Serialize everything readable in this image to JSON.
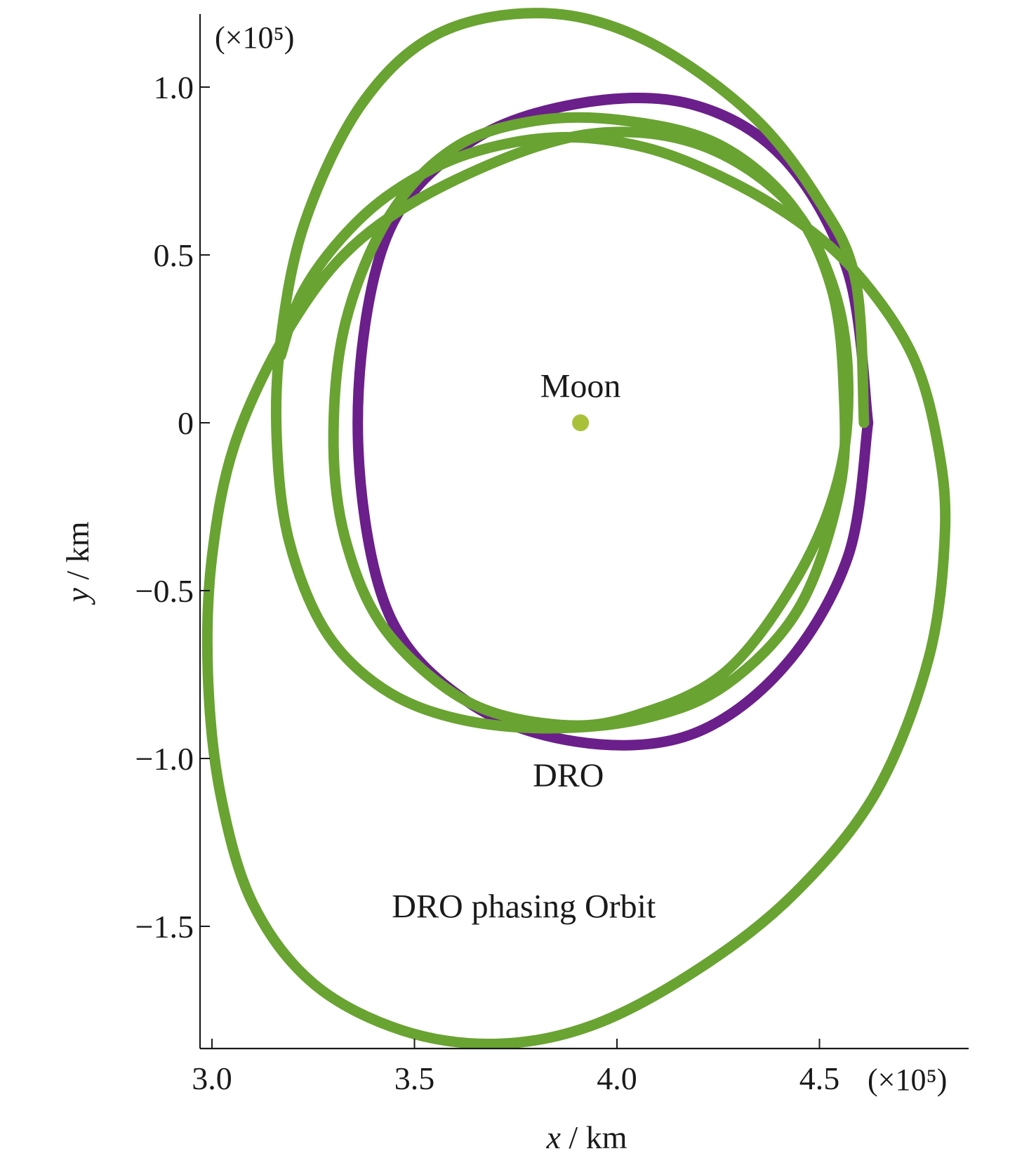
{
  "chart_data": {
    "type": "line",
    "xlabel_var": "x",
    "xlabel_unit": " / km",
    "ylabel_var": "y",
    "ylabel_unit": " / km",
    "x_scale_note": "(×10⁵)",
    "y_scale_note": "(×10⁵)",
    "xlim": [
      2.98,
      4.85
    ],
    "ylim": [
      -1.86,
      1.24
    ],
    "xticks": [
      3.0,
      3.5,
      4.0,
      4.5
    ],
    "xtick_labels": [
      "3.0",
      "3.5",
      "4.0",
      "4.5"
    ],
    "yticks": [
      1.0,
      0.5,
      0,
      -0.5,
      -1.0,
      -1.5
    ],
    "ytick_labels": [
      "1.0",
      "0.5",
      "0",
      "−0.5",
      "−1.0",
      "−1.5"
    ],
    "grid": false,
    "annotations": [
      {
        "text": "Moon",
        "x": 3.91,
        "y": 0.11
      },
      {
        "text": "DRO",
        "x": 3.88,
        "y": -1.05
      },
      {
        "text": "DRO phasing Orbit",
        "x": 3.77,
        "y": -1.44
      }
    ],
    "moon": {
      "x": 3.91,
      "y": 0.0,
      "color": "#a9c13a"
    },
    "series": [
      {
        "color": "#6a1f8a",
        "points": [
          [
            4.62,
            0.0
          ],
          [
            4.57,
            0.45
          ],
          [
            4.41,
            0.79
          ],
          [
            4.18,
            0.95
          ],
          [
            3.9,
            0.95
          ],
          [
            3.63,
            0.83
          ],
          [
            3.43,
            0.55
          ],
          [
            3.36,
            0.0
          ],
          [
            3.43,
            -0.55
          ],
          [
            3.63,
            -0.83
          ],
          [
            3.9,
            -0.95
          ],
          [
            4.18,
            -0.93
          ],
          [
            4.41,
            -0.73
          ],
          [
            4.57,
            -0.4
          ],
          [
            4.62,
            0.0
          ]
        ]
      },
      {
        "color": "#69a332",
        "points": [
          [
            4.61,
            0.0
          ],
          [
            4.59,
            0.42
          ],
          [
            4.5,
            0.66
          ],
          [
            4.33,
            0.92
          ],
          [
            4.07,
            1.14
          ],
          [
            3.82,
            1.22
          ],
          [
            3.56,
            1.16
          ],
          [
            3.37,
            0.95
          ],
          [
            3.23,
            0.6
          ],
          [
            3.17,
            0.25
          ],
          [
            3.16,
            -0.05
          ],
          [
            3.19,
            -0.35
          ],
          [
            3.28,
            -0.62
          ],
          [
            3.42,
            -0.79
          ],
          [
            3.6,
            -0.88
          ],
          [
            3.83,
            -0.91
          ],
          [
            4.07,
            -0.88
          ],
          [
            4.27,
            -0.78
          ],
          [
            4.45,
            -0.55
          ],
          [
            4.55,
            -0.2
          ],
          [
            4.56,
            0.1
          ],
          [
            4.53,
            0.4
          ],
          [
            4.43,
            0.65
          ],
          [
            4.25,
            0.83
          ],
          [
            4.02,
            0.9
          ],
          [
            3.8,
            0.9
          ],
          [
            3.6,
            0.82
          ],
          [
            3.44,
            0.62
          ],
          [
            3.33,
            0.3
          ],
          [
            3.3,
            -0.05
          ],
          [
            3.33,
            -0.35
          ],
          [
            3.43,
            -0.62
          ],
          [
            3.63,
            -0.83
          ],
          [
            3.86,
            -0.9
          ],
          [
            4.05,
            -0.87
          ],
          [
            4.27,
            -0.74
          ],
          [
            4.45,
            -0.45
          ],
          [
            4.55,
            -0.15
          ],
          [
            4.57,
            0.15
          ],
          [
            4.53,
            0.42
          ],
          [
            4.42,
            0.66
          ],
          [
            4.2,
            0.83
          ],
          [
            3.93,
            0.86
          ],
          [
            3.63,
            0.74
          ],
          [
            3.37,
            0.55
          ],
          [
            3.2,
            0.3
          ],
          [
            3.06,
            -0.05
          ],
          [
            3.0,
            -0.4
          ],
          [
            2.99,
            -0.75
          ],
          [
            3.02,
            -1.1
          ],
          [
            3.1,
            -1.43
          ],
          [
            3.25,
            -1.67
          ],
          [
            3.47,
            -1.81
          ],
          [
            3.71,
            -1.85
          ],
          [
            3.95,
            -1.79
          ],
          [
            4.21,
            -1.62
          ],
          [
            4.44,
            -1.4
          ],
          [
            4.64,
            -1.1
          ],
          [
            4.77,
            -0.7
          ],
          [
            4.81,
            -0.32
          ],
          [
            4.79,
            -0.05
          ],
          [
            4.73,
            0.2
          ],
          [
            4.61,
            0.42
          ],
          [
            4.47,
            0.58
          ],
          [
            4.28,
            0.72
          ],
          [
            4.07,
            0.82
          ],
          [
            3.85,
            0.85
          ],
          [
            3.63,
            0.8
          ],
          [
            3.45,
            0.69
          ],
          [
            3.32,
            0.55
          ],
          [
            3.22,
            0.38
          ],
          [
            3.17,
            0.2
          ]
        ]
      }
    ]
  }
}
